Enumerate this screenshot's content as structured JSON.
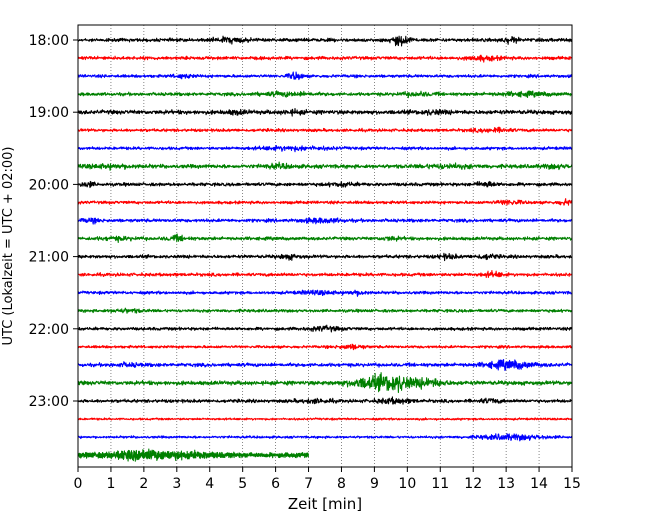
{
  "chart_data": {
    "type": "line",
    "title": "",
    "xlabel": "Zeit  [min]",
    "ylabel": "UTC (Lokalzeit = UTC + 02:00)",
    "xlim": [
      0,
      15
    ],
    "x_ticks": [
      "0",
      "1",
      "2",
      "3",
      "4",
      "5",
      "6",
      "7",
      "8",
      "9",
      "10",
      "11",
      "12",
      "13",
      "14",
      "15"
    ],
    "y_ticks": [
      "18:00",
      "19:00",
      "20:00",
      "21:00",
      "22:00",
      "23:00"
    ],
    "grid": "vertical-dotted",
    "trace_colors": [
      "#000000",
      "#ff0000",
      "#0000ff",
      "#008000"
    ],
    "trace_interval_min": 15,
    "traces": [
      {
        "start": "18:00",
        "color": "#000000",
        "amp": 2.2,
        "events": [
          [
            4.6,
            0.5,
            3
          ],
          [
            9.8,
            0.3,
            6
          ],
          [
            13.1,
            0.3,
            3
          ]
        ]
      },
      {
        "start": "18:15",
        "color": "#ff0000",
        "amp": 2.2,
        "events": [
          [
            12.3,
            0.5,
            2.5
          ]
        ]
      },
      {
        "start": "18:30",
        "color": "#0000ff",
        "amp": 2.0,
        "events": [
          [
            6.6,
            0.2,
            5
          ],
          [
            3.2,
            0.3,
            2
          ]
        ]
      },
      {
        "start": "18:45",
        "color": "#008000",
        "amp": 2.2,
        "events": [
          [
            6.3,
            0.8,
            2
          ],
          [
            10.3,
            0.5,
            2
          ],
          [
            13.6,
            0.8,
            2
          ]
        ]
      },
      {
        "start": "19:00",
        "color": "#000000",
        "amp": 2.8,
        "events": [
          [
            4.8,
            0.3,
            2
          ],
          [
            6.5,
            0.3,
            2
          ],
          [
            10.8,
            0.4,
            2
          ]
        ]
      },
      {
        "start": "19:15",
        "color": "#ff0000",
        "amp": 2.0,
        "events": [
          [
            12.6,
            0.6,
            2
          ]
        ]
      },
      {
        "start": "19:30",
        "color": "#0000ff",
        "amp": 2.0,
        "events": [
          [
            6.5,
            1.0,
            2.2
          ]
        ]
      },
      {
        "start": "19:45",
        "color": "#008000",
        "amp": 2.6,
        "events": [
          [
            1.0,
            0.8,
            1.8
          ],
          [
            6.1,
            0.4,
            2
          ],
          [
            11.2,
            0.8,
            1.8
          ],
          [
            14.5,
            0.4,
            1.8
          ]
        ]
      },
      {
        "start": "20:00",
        "color": "#000000",
        "amp": 2.2,
        "events": [
          [
            0.3,
            0.2,
            3
          ],
          [
            8.0,
            0.4,
            2
          ],
          [
            12.4,
            0.3,
            3
          ]
        ]
      },
      {
        "start": "20:15",
        "color": "#ff0000",
        "amp": 2.0,
        "events": [
          [
            13.1,
            0.4,
            2.5
          ],
          [
            14.8,
            0.2,
            3
          ]
        ]
      },
      {
        "start": "20:30",
        "color": "#0000ff",
        "amp": 2.2,
        "events": [
          [
            0.4,
            0.3,
            2
          ],
          [
            7.4,
            0.6,
            2.5
          ]
        ]
      },
      {
        "start": "20:45",
        "color": "#008000",
        "amp": 2.2,
        "events": [
          [
            1.2,
            0.5,
            1.8
          ],
          [
            3.0,
            0.3,
            3
          ],
          [
            9.5,
            0.3,
            2
          ]
        ]
      },
      {
        "start": "21:00",
        "color": "#000000",
        "amp": 2.2,
        "events": [
          [
            6.4,
            0.3,
            2.5
          ],
          [
            11.2,
            0.3,
            2.5
          ],
          [
            12.4,
            0.3,
            2.5
          ]
        ]
      },
      {
        "start": "21:15",
        "color": "#ff0000",
        "amp": 2.2,
        "events": [
          [
            12.6,
            0.3,
            3
          ]
        ]
      },
      {
        "start": "21:30",
        "color": "#0000ff",
        "amp": 2.0,
        "events": [
          [
            7.3,
            0.6,
            2
          ],
          [
            8.5,
            0.3,
            2.5
          ]
        ]
      },
      {
        "start": "21:45",
        "color": "#008000",
        "amp": 2.0,
        "events": [
          [
            1.5,
            0.5,
            1.8
          ]
        ]
      },
      {
        "start": "22:00",
        "color": "#000000",
        "amp": 2.0,
        "events": [
          [
            7.5,
            0.5,
            2.5
          ]
        ]
      },
      {
        "start": "22:15",
        "color": "#ff0000",
        "amp": 1.8,
        "events": [
          [
            8.3,
            0.4,
            2.5
          ]
        ]
      },
      {
        "start": "22:30",
        "color": "#0000ff",
        "amp": 2.4,
        "events": [
          [
            13.1,
            0.7,
            5
          ],
          [
            1.5,
            0.4,
            1.6
          ]
        ]
      },
      {
        "start": "22:45",
        "color": "#008000",
        "amp": 2.8,
        "events": [
          [
            9.1,
            0.8,
            8
          ],
          [
            9.7,
            0.4,
            6
          ],
          [
            10.6,
            0.5,
            5
          ]
        ]
      },
      {
        "start": "23:00",
        "color": "#000000",
        "amp": 2.2,
        "events": [
          [
            7.2,
            0.5,
            2
          ],
          [
            9.6,
            0.5,
            3
          ],
          [
            12.5,
            0.3,
            2.5
          ]
        ]
      },
      {
        "start": "23:15",
        "color": "#ff0000",
        "amp": 1.4,
        "events": []
      },
      {
        "start": "23:30",
        "color": "#0000ff",
        "amp": 1.6,
        "events": [
          [
            13.2,
            1.0,
            3.5
          ]
        ]
      },
      {
        "start": "23:45",
        "color": "#008000",
        "amp": 3.2,
        "end_min": 7.0,
        "events": [
          [
            1.9,
            1.0,
            4.5
          ],
          [
            3.5,
            0.8,
            2
          ]
        ]
      }
    ]
  }
}
